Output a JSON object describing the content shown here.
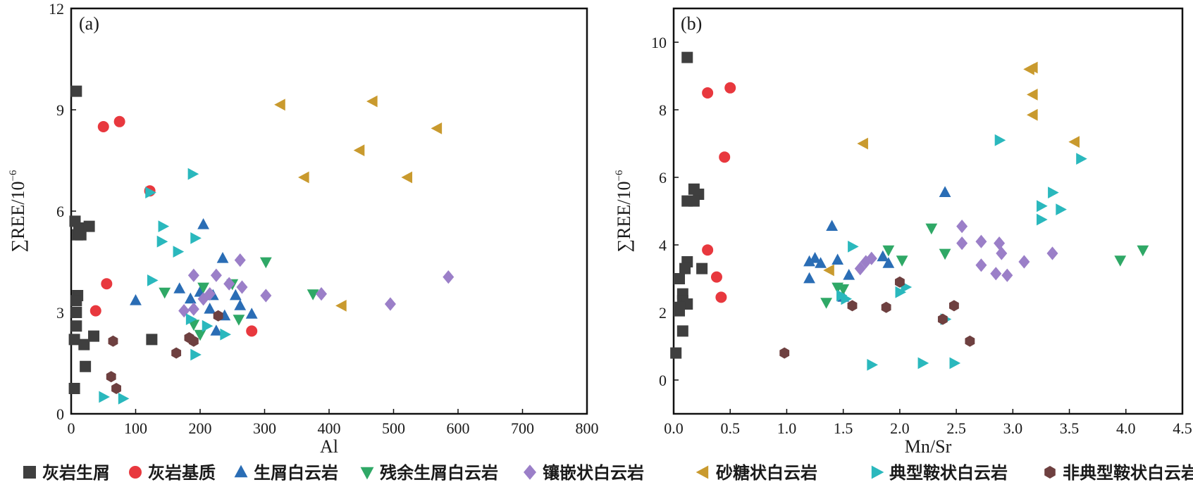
{
  "colors": {
    "灰岩生屑": "#3f3f3f",
    "灰岩基质": "#e8383e",
    "生屑白云岩": "#2a6db5",
    "残余生屑白云岩": "#2fa866",
    "镶嵌状白云岩": "#9b7fc8",
    "砂糖状白云岩": "#c99a2e",
    "典型鞍状白云岩": "#2ab8bd",
    "非典型鞍状白云岩": "#6e4040"
  },
  "legend": [
    {
      "label": "灰岩生屑",
      "marker": "square"
    },
    {
      "label": "灰岩基质",
      "marker": "circle"
    },
    {
      "label": "生屑白云岩",
      "marker": "triangle-up"
    },
    {
      "label": "残余生屑白云岩",
      "marker": "triangle-down"
    },
    {
      "label": "镶嵌状白云岩",
      "marker": "diamond"
    },
    {
      "label": "砂糖状白云岩",
      "marker": "triangle-left"
    },
    {
      "label": "典型鞍状白云岩",
      "marker": "triangle-right"
    },
    {
      "label": "非典型鞍状白云岩",
      "marker": "hexagon"
    }
  ],
  "chart_data": [
    {
      "type": "scatter",
      "panel_label": "(a)",
      "xlabel": "Al",
      "ylabel_main": "∑REE/10",
      "ylabel_exp": "−6",
      "xlim": [
        0,
        800
      ],
      "ylim": [
        0,
        12
      ],
      "xticks": [
        0,
        100,
        200,
        300,
        400,
        500,
        600,
        700,
        800
      ],
      "yticks": [
        0,
        3,
        6,
        9,
        12
      ],
      "series": [
        {
          "name": "灰岩生屑",
          "marker": "square",
          "points": [
            [
              8,
              9.55
            ],
            [
              6,
              5.7
            ],
            [
              12,
              5.5
            ],
            [
              28,
              5.55
            ],
            [
              10,
              5.3
            ],
            [
              15,
              5.3
            ],
            [
              10,
              3.5
            ],
            [
              8,
              3.35
            ],
            [
              8,
              3.0
            ],
            [
              8,
              2.6
            ],
            [
              35,
              2.3
            ],
            [
              20,
              2.05
            ],
            [
              22,
              1.4
            ],
            [
              5,
              2.2
            ],
            [
              5,
              0.75
            ],
            [
              125,
              2.2
            ]
          ]
        },
        {
          "name": "灰岩基质",
          "marker": "circle",
          "points": [
            [
              50,
              8.5
            ],
            [
              75,
              8.65
            ],
            [
              122,
              6.6
            ],
            [
              55,
              3.85
            ],
            [
              38,
              3.05
            ],
            [
              280,
              2.45
            ]
          ]
        },
        {
          "name": "生屑白云岩",
          "marker": "triangle-up",
          "points": [
            [
              205,
              5.6
            ],
            [
              235,
              4.6
            ],
            [
              100,
              3.35
            ],
            [
              168,
              3.7
            ],
            [
              200,
              3.6
            ],
            [
              220,
              3.5
            ],
            [
              185,
              3.4
            ],
            [
              215,
              3.1
            ],
            [
              238,
              2.9
            ],
            [
              262,
              3.2
            ],
            [
              280,
              2.95
            ],
            [
              255,
              3.5
            ],
            [
              225,
              2.45
            ]
          ]
        },
        {
          "name": "残余生屑白云岩",
          "marker": "triangle-down",
          "points": [
            [
              302,
              4.5
            ],
            [
              145,
              3.6
            ],
            [
              205,
              3.75
            ],
            [
              250,
              3.85
            ],
            [
              375,
              3.55
            ],
            [
              190,
              2.65
            ],
            [
              260,
              2.8
            ],
            [
              200,
              2.35
            ]
          ]
        },
        {
          "name": "镶嵌状白云岩",
          "marker": "diamond",
          "points": [
            [
              262,
              4.55
            ],
            [
              190,
              4.1
            ],
            [
              225,
              4.1
            ],
            [
              245,
              3.85
            ],
            [
              265,
              3.75
            ],
            [
              215,
              3.55
            ],
            [
              205,
              3.4
            ],
            [
              175,
              3.05
            ],
            [
              190,
              3.1
            ],
            [
              302,
              3.5
            ],
            [
              388,
              3.55
            ],
            [
              495,
              3.25
            ],
            [
              585,
              4.05
            ]
          ]
        },
        {
          "name": "砂糖状白云岩",
          "marker": "triangle-left",
          "points": [
            [
              325,
              9.15
            ],
            [
              468,
              9.25
            ],
            [
              568,
              8.45
            ],
            [
              448,
              7.8
            ],
            [
              362,
              7.0
            ],
            [
              522,
              7.0
            ],
            [
              420,
              3.2
            ]
          ]
        },
        {
          "name": "典型鞍状白云岩",
          "marker": "triangle-right",
          "points": [
            [
              188,
              7.1
            ],
            [
              122,
              6.55
            ],
            [
              142,
              5.55
            ],
            [
              140,
              5.1
            ],
            [
              192,
              5.2
            ],
            [
              165,
              4.8
            ],
            [
              125,
              3.95
            ],
            [
              185,
              2.8
            ],
            [
              210,
              2.6
            ],
            [
              238,
              2.35
            ],
            [
              192,
              1.75
            ],
            [
              50,
              0.5
            ],
            [
              80,
              0.45
            ]
          ]
        },
        {
          "name": "非典型鞍状白云岩",
          "marker": "hexagon",
          "points": [
            [
              65,
              2.15
            ],
            [
              190,
              2.15
            ],
            [
              183,
              2.25
            ],
            [
              228,
              2.9
            ],
            [
              163,
              1.8
            ],
            [
              62,
              1.1
            ],
            [
              70,
              0.75
            ]
          ]
        }
      ]
    },
    {
      "type": "scatter",
      "panel_label": "(b)",
      "xlabel": "Mn/Sr",
      "ylabel_main": "∑REE/10",
      "ylabel_exp": "−6",
      "xlim": [
        0,
        4.5
      ],
      "ylim": [
        -1,
        11
      ],
      "xticks": [
        0.0,
        0.5,
        1.0,
        1.5,
        2.0,
        2.5,
        3.0,
        3.5,
        4.0,
        4.5
      ],
      "xtick_labels": [
        "0.0",
        "0.5",
        "1.0",
        "1.5",
        "2.0",
        "2.5",
        "3.0",
        "3.5",
        "4.0",
        "4.5"
      ],
      "yticks": [
        0,
        2,
        4,
        6,
        8,
        10
      ],
      "series": [
        {
          "name": "灰岩生屑",
          "marker": "square",
          "points": [
            [
              0.12,
              9.55
            ],
            [
              0.18,
              5.65
            ],
            [
              0.22,
              5.5
            ],
            [
              0.12,
              5.3
            ],
            [
              0.18,
              5.3
            ],
            [
              0.12,
              3.5
            ],
            [
              0.1,
              3.3
            ],
            [
              0.05,
              3.0
            ],
            [
              0.08,
              2.55
            ],
            [
              0.08,
              2.35
            ],
            [
              0.12,
              2.25
            ],
            [
              0.05,
              2.15
            ],
            [
              0.05,
              2.05
            ],
            [
              0.08,
              1.45
            ],
            [
              0.02,
              0.8
            ],
            [
              0.25,
              3.3
            ]
          ]
        },
        {
          "name": "灰岩基质",
          "marker": "circle",
          "points": [
            [
              0.3,
              8.5
            ],
            [
              0.5,
              8.65
            ],
            [
              0.45,
              6.6
            ],
            [
              0.3,
              3.85
            ],
            [
              0.38,
              3.05
            ],
            [
              0.42,
              2.45
            ]
          ]
        },
        {
          "name": "生屑白云岩",
          "marker": "triangle-up",
          "points": [
            [
              2.4,
              5.55
            ],
            [
              1.4,
              4.55
            ],
            [
              1.25,
              3.6
            ],
            [
              1.2,
              3.5
            ],
            [
              1.3,
              3.45
            ],
            [
              1.45,
              3.55
            ],
            [
              1.55,
              3.1
            ],
            [
              1.85,
              3.65
            ],
            [
              1.9,
              3.45
            ],
            [
              1.2,
              3.0
            ],
            [
              1.5,
              2.45
            ]
          ]
        },
        {
          "name": "残余生屑白云岩",
          "marker": "triangle-down",
          "points": [
            [
              2.28,
              4.5
            ],
            [
              2.4,
              3.75
            ],
            [
              1.9,
              3.85
            ],
            [
              2.02,
              3.55
            ],
            [
              1.5,
              2.7
            ],
            [
              1.45,
              2.75
            ],
            [
              1.35,
              2.3
            ],
            [
              3.95,
              3.55
            ],
            [
              4.15,
              3.85
            ]
          ]
        },
        {
          "name": "镶嵌状白云岩",
          "marker": "diamond",
          "points": [
            [
              2.55,
              4.55
            ],
            [
              2.55,
              4.05
            ],
            [
              2.72,
              4.1
            ],
            [
              2.88,
              4.05
            ],
            [
              2.9,
              3.75
            ],
            [
              3.35,
              3.75
            ],
            [
              3.1,
              3.5
            ],
            [
              2.72,
              3.4
            ],
            [
              2.85,
              3.15
            ],
            [
              2.95,
              3.1
            ],
            [
              1.65,
              3.3
            ],
            [
              1.7,
              3.5
            ],
            [
              1.75,
              3.6
            ]
          ]
        },
        {
          "name": "砂糖状白云岩",
          "marker": "triangle-left",
          "points": [
            [
              3.15,
              9.2
            ],
            [
              3.18,
              9.25
            ],
            [
              3.18,
              8.45
            ],
            [
              3.18,
              7.85
            ],
            [
              1.68,
              7.0
            ],
            [
              3.55,
              7.05
            ],
            [
              1.38,
              3.25
            ]
          ]
        },
        {
          "name": "典型鞍状白云岩",
          "marker": "triangle-right",
          "points": [
            [
              2.88,
              7.1
            ],
            [
              3.6,
              6.55
            ],
            [
              3.35,
              5.55
            ],
            [
              3.25,
              5.15
            ],
            [
              3.42,
              5.05
            ],
            [
              3.25,
              4.75
            ],
            [
              1.58,
              3.95
            ],
            [
              2.05,
              2.75
            ],
            [
              2.0,
              2.6
            ],
            [
              1.48,
              2.5
            ],
            [
              1.52,
              2.4
            ],
            [
              1.75,
              0.45
            ],
            [
              2.2,
              0.5
            ],
            [
              2.48,
              0.5
            ],
            [
              2.4,
              1.8
            ]
          ]
        },
        {
          "name": "非典型鞍状白云岩",
          "marker": "hexagon",
          "points": [
            [
              2.0,
              2.9
            ],
            [
              1.58,
              2.2
            ],
            [
              1.88,
              2.15
            ],
            [
              2.38,
              1.8
            ],
            [
              2.48,
              2.2
            ],
            [
              2.62,
              1.15
            ],
            [
              0.98,
              0.8
            ]
          ]
        }
      ]
    }
  ]
}
